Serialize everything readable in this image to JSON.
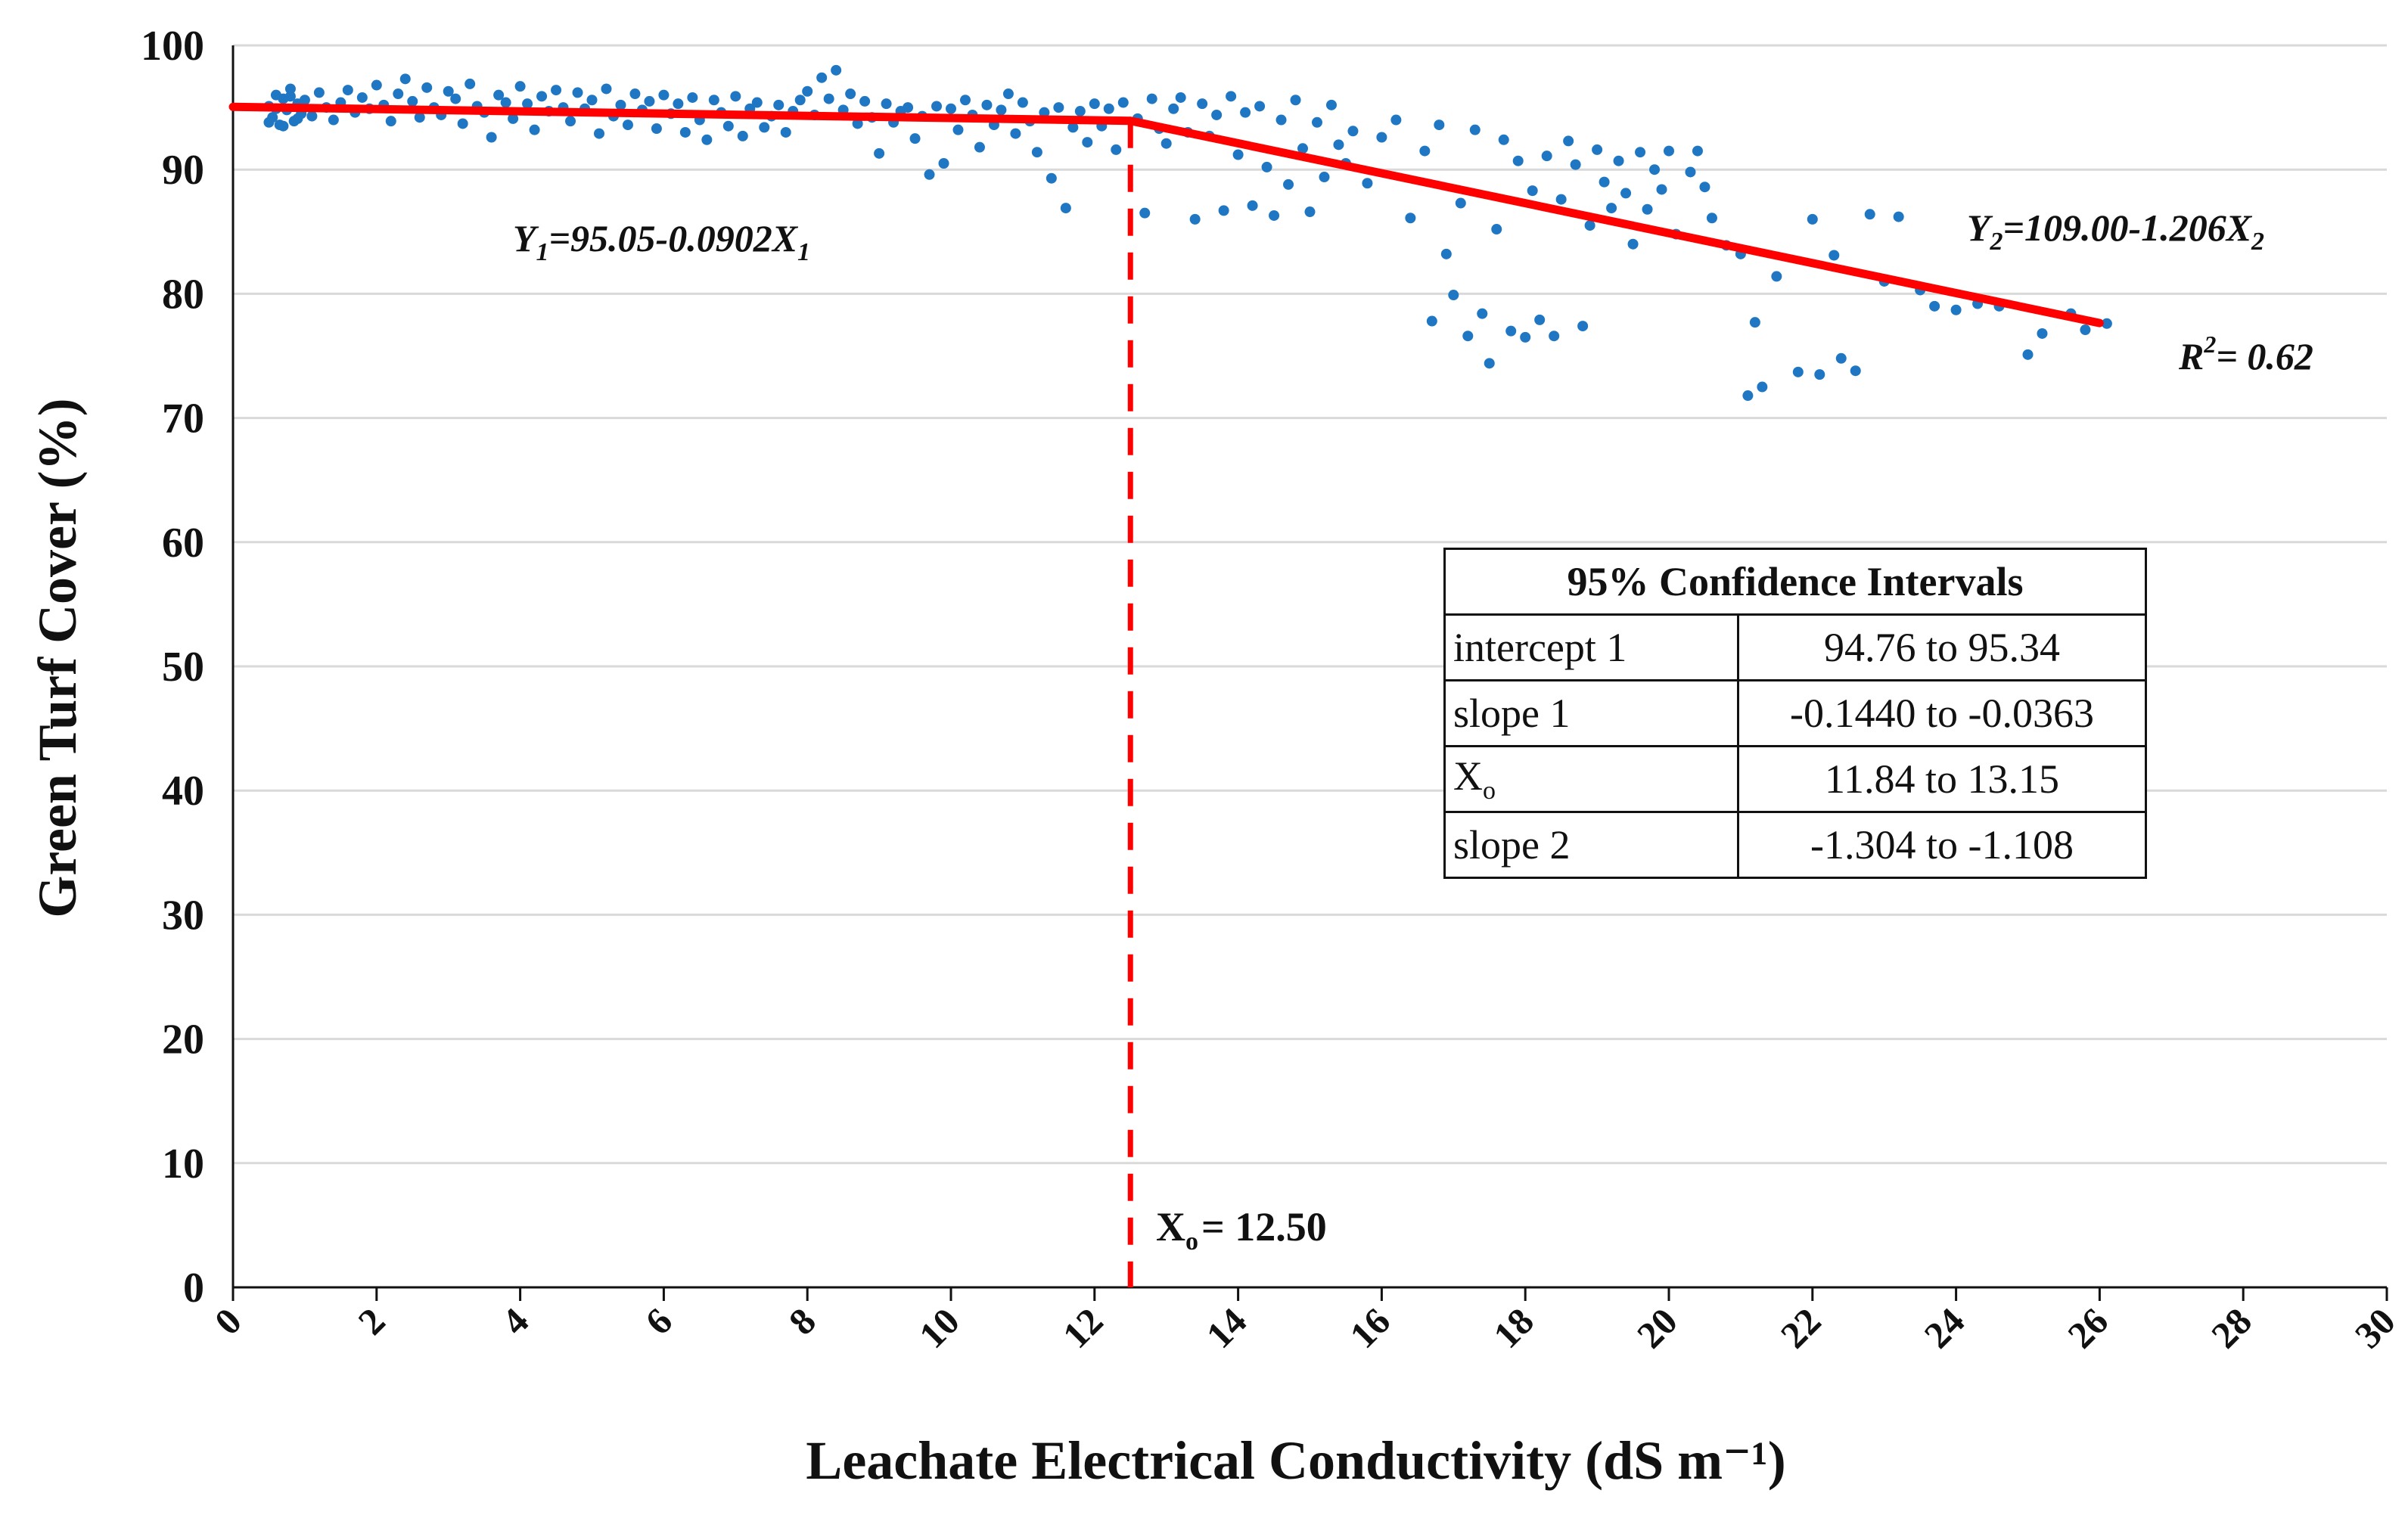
{
  "chart_data": {
    "type": "scatter",
    "xlabel": "Leachate Electrical Conductivity (dS m⁻¹)",
    "ylabel": "Green Turf Cover (%)",
    "xlim": [
      0,
      30
    ],
    "ylim": [
      0,
      100
    ],
    "x_ticks": [
      "0",
      "2",
      "4",
      "6",
      "8",
      "10",
      "12",
      "14",
      "16",
      "18",
      "20",
      "22",
      "24",
      "26",
      "28",
      "30"
    ],
    "y_ticks": [
      "0",
      "10",
      "20",
      "30",
      "40",
      "50",
      "60",
      "70",
      "80",
      "90",
      "100"
    ],
    "grid": "horizontal",
    "point_color": "#1f77c4",
    "fit_color": "#ff0000",
    "segments": [
      {
        "name": "Y1=95.05-0.0902X1",
        "intercept": 95.05,
        "slope": -0.0902,
        "x_start": 0,
        "x_end": 12.5
      },
      {
        "name": "Y2=109.00-1.206X2",
        "intercept": 109.0,
        "slope": -1.206,
        "x_start": 12.5,
        "x_end": 26.0
      }
    ],
    "breakpoint": {
      "label": "X",
      "sub": "o",
      "value_text": "= 12.50",
      "x": 12.5
    },
    "annotations": {
      "eq1": {
        "y": "Y",
        "s1": "1",
        "mid": "=95.05-0.0902X",
        "s2": "1"
      },
      "eq2": {
        "y": "Y",
        "s1": "2",
        "mid": "=109.00-1.206X",
        "s2": "2"
      },
      "r2": {
        "r": "R",
        "sup": "2",
        "rest": "= 0.62"
      }
    },
    "points": [
      [
        0.5,
        95.1
      ],
      [
        0.55,
        94.2
      ],
      [
        0.6,
        96.0
      ],
      [
        0.65,
        93.6
      ],
      [
        0.7,
        95.7
      ],
      [
        0.75,
        94.8
      ],
      [
        0.8,
        96.5
      ],
      [
        0.85,
        93.9
      ],
      [
        0.9,
        95.3
      ],
      [
        0.95,
        94.5
      ],
      [
        0.5,
        93.8
      ],
      [
        0.6,
        94.9
      ],
      [
        0.7,
        93.5
      ],
      [
        0.8,
        95.9
      ],
      [
        0.9,
        94.1
      ],
      [
        1.0,
        95.6
      ],
      [
        1.1,
        94.3
      ],
      [
        1.2,
        96.2
      ],
      [
        1.3,
        95.0
      ],
      [
        1.4,
        94.0
      ],
      [
        1.5,
        95.4
      ],
      [
        1.6,
        96.4
      ],
      [
        1.7,
        94.6
      ],
      [
        1.8,
        95.8
      ],
      [
        1.9,
        94.9
      ],
      [
        2.0,
        96.8
      ],
      [
        2.1,
        95.2
      ],
      [
        2.2,
        93.9
      ],
      [
        2.3,
        96.1
      ],
      [
        2.4,
        97.3
      ],
      [
        2.5,
        95.5
      ],
      [
        2.6,
        94.2
      ],
      [
        2.7,
        96.6
      ],
      [
        2.8,
        95.0
      ],
      [
        2.9,
        94.4
      ],
      [
        3.0,
        96.3
      ],
      [
        3.1,
        95.7
      ],
      [
        3.2,
        93.7
      ],
      [
        3.3,
        96.9
      ],
      [
        3.4,
        95.1
      ],
      [
        3.5,
        94.6
      ],
      [
        3.6,
        92.6
      ],
      [
        3.7,
        96.0
      ],
      [
        3.8,
        95.4
      ],
      [
        3.9,
        94.1
      ],
      [
        4.0,
        96.7
      ],
      [
        4.1,
        95.3
      ],
      [
        4.2,
        93.2
      ],
      [
        4.3,
        95.9
      ],
      [
        4.4,
        94.7
      ],
      [
        4.5,
        96.4
      ],
      [
        4.6,
        95.0
      ],
      [
        4.7,
        93.9
      ],
      [
        4.8,
        96.2
      ],
      [
        4.9,
        94.9
      ],
      [
        5.0,
        95.6
      ],
      [
        5.1,
        92.9
      ],
      [
        5.2,
        96.5
      ],
      [
        5.3,
        94.3
      ],
      [
        5.4,
        95.2
      ],
      [
        5.5,
        93.6
      ],
      [
        5.6,
        96.1
      ],
      [
        5.7,
        94.8
      ],
      [
        5.8,
        95.5
      ],
      [
        5.9,
        93.3
      ],
      [
        6.0,
        96.0
      ],
      [
        6.1,
        94.5
      ],
      [
        6.2,
        95.3
      ],
      [
        6.3,
        93.0
      ],
      [
        6.4,
        95.8
      ],
      [
        6.5,
        94.0
      ],
      [
        6.6,
        92.4
      ],
      [
        6.7,
        95.6
      ],
      [
        6.8,
        94.6
      ],
      [
        6.9,
        93.5
      ],
      [
        7.0,
        95.9
      ],
      [
        7.1,
        92.7
      ],
      [
        7.2,
        94.9
      ],
      [
        7.3,
        95.4
      ],
      [
        7.4,
        93.4
      ],
      [
        7.5,
        94.3
      ],
      [
        7.6,
        95.2
      ],
      [
        7.7,
        93.0
      ],
      [
        7.8,
        94.7
      ],
      [
        7.9,
        95.6
      ],
      [
        8.0,
        96.3
      ],
      [
        8.1,
        94.4
      ],
      [
        8.2,
        97.4
      ],
      [
        8.3,
        95.7
      ],
      [
        8.4,
        98.0
      ],
      [
        8.5,
        94.8
      ],
      [
        8.6,
        96.1
      ],
      [
        8.7,
        93.7
      ],
      [
        8.8,
        95.5
      ],
      [
        8.9,
        94.2
      ],
      [
        9.0,
        91.3
      ],
      [
        9.1,
        95.3
      ],
      [
        9.2,
        93.8
      ],
      [
        9.3,
        94.7
      ],
      [
        9.4,
        95.0
      ],
      [
        9.5,
        92.5
      ],
      [
        9.6,
        94.3
      ],
      [
        9.7,
        89.6
      ],
      [
        9.8,
        95.1
      ],
      [
        9.9,
        90.5
      ],
      [
        10.0,
        94.9
      ],
      [
        10.1,
        93.2
      ],
      [
        10.2,
        95.6
      ],
      [
        10.3,
        94.4
      ],
      [
        10.4,
        91.8
      ],
      [
        10.5,
        95.2
      ],
      [
        10.6,
        93.6
      ],
      [
        10.7,
        94.8
      ],
      [
        10.8,
        96.1
      ],
      [
        10.9,
        92.9
      ],
      [
        11.0,
        95.4
      ],
      [
        11.1,
        93.9
      ],
      [
        11.2,
        91.4
      ],
      [
        11.3,
        94.6
      ],
      [
        11.4,
        89.3
      ],
      [
        11.5,
        95.0
      ],
      [
        11.6,
        86.9
      ],
      [
        11.7,
        93.4
      ],
      [
        11.8,
        94.7
      ],
      [
        11.9,
        92.2
      ],
      [
        12.0,
        95.3
      ],
      [
        12.1,
        93.5
      ],
      [
        12.2,
        94.9
      ],
      [
        12.3,
        91.6
      ],
      [
        12.4,
        95.4
      ],
      [
        12.6,
        94.1
      ],
      [
        12.7,
        86.5
      ],
      [
        12.8,
        95.7
      ],
      [
        12.9,
        93.3
      ],
      [
        13.0,
        92.1
      ],
      [
        13.1,
        94.9
      ],
      [
        13.2,
        95.8
      ],
      [
        13.3,
        93.0
      ],
      [
        13.4,
        86.0
      ],
      [
        13.5,
        95.3
      ],
      [
        13.6,
        92.7
      ],
      [
        13.7,
        94.4
      ],
      [
        13.8,
        86.7
      ],
      [
        13.9,
        95.9
      ],
      [
        14.0,
        91.2
      ],
      [
        14.1,
        94.6
      ],
      [
        14.2,
        87.1
      ],
      [
        14.3,
        95.1
      ],
      [
        14.4,
        90.2
      ],
      [
        14.5,
        86.3
      ],
      [
        14.6,
        94.0
      ],
      [
        14.7,
        88.8
      ],
      [
        14.8,
        95.6
      ],
      [
        14.9,
        91.7
      ],
      [
        15.0,
        86.6
      ],
      [
        15.1,
        93.8
      ],
      [
        15.2,
        89.4
      ],
      [
        15.3,
        95.2
      ],
      [
        15.4,
        92.0
      ],
      [
        15.5,
        90.5
      ],
      [
        15.6,
        93.1
      ],
      [
        15.8,
        88.9
      ],
      [
        16.0,
        92.6
      ],
      [
        16.2,
        94.0
      ],
      [
        16.4,
        86.1
      ],
      [
        16.6,
        91.5
      ],
      [
        16.7,
        77.8
      ],
      [
        16.8,
        93.6
      ],
      [
        16.9,
        83.2
      ],
      [
        17.0,
        79.9
      ],
      [
        17.1,
        87.3
      ],
      [
        17.2,
        76.6
      ],
      [
        17.3,
        93.2
      ],
      [
        17.4,
        78.4
      ],
      [
        17.5,
        74.4
      ],
      [
        17.6,
        85.2
      ],
      [
        17.7,
        92.4
      ],
      [
        17.8,
        77.0
      ],
      [
        17.9,
        90.7
      ],
      [
        18.0,
        76.5
      ],
      [
        18.1,
        88.3
      ],
      [
        18.2,
        77.9
      ],
      [
        18.3,
        91.1
      ],
      [
        18.4,
        76.6
      ],
      [
        18.5,
        87.6
      ],
      [
        18.6,
        92.3
      ],
      [
        18.7,
        90.4
      ],
      [
        18.8,
        77.4
      ],
      [
        18.9,
        85.5
      ],
      [
        19.0,
        91.6
      ],
      [
        19.1,
        89.0
      ],
      [
        19.2,
        86.9
      ],
      [
        19.3,
        90.7
      ],
      [
        19.4,
        88.1
      ],
      [
        19.5,
        84.0
      ],
      [
        19.6,
        91.4
      ],
      [
        19.7,
        86.8
      ],
      [
        19.8,
        90.0
      ],
      [
        19.9,
        88.4
      ],
      [
        20.0,
        91.5
      ],
      [
        20.1,
        84.8
      ],
      [
        20.3,
        89.8
      ],
      [
        20.4,
        91.5
      ],
      [
        20.5,
        88.6
      ],
      [
        20.6,
        86.1
      ],
      [
        20.8,
        83.9
      ],
      [
        21.0,
        83.2
      ],
      [
        21.1,
        71.8
      ],
      [
        21.2,
        77.7
      ],
      [
        21.3,
        72.5
      ],
      [
        21.5,
        81.4
      ],
      [
        21.8,
        73.7
      ],
      [
        22.0,
        86.0
      ],
      [
        22.1,
        73.5
      ],
      [
        22.3,
        83.1
      ],
      [
        22.4,
        74.8
      ],
      [
        22.6,
        73.8
      ],
      [
        22.8,
        86.4
      ],
      [
        23.0,
        81.0
      ],
      [
        23.2,
        86.2
      ],
      [
        23.5,
        80.3
      ],
      [
        23.7,
        79.0
      ],
      [
        24.0,
        78.7
      ],
      [
        24.3,
        79.2
      ],
      [
        24.6,
        79.0
      ],
      [
        25.0,
        75.1
      ],
      [
        25.2,
        76.8
      ],
      [
        25.6,
        78.4
      ],
      [
        25.8,
        77.1
      ],
      [
        26.1,
        77.6
      ]
    ]
  },
  "ci_table": {
    "title": "95% Confidence Intervals",
    "rows": [
      {
        "label": "intercept 1",
        "value": "94.76 to 95.34"
      },
      {
        "label": "slope 1",
        "value": "-0.1440 to -0.0363"
      },
      {
        "label_main": "X",
        "label_sub": "o",
        "value": "11.84 to 13.15"
      },
      {
        "label": "slope 2",
        "value": "-1.304 to -1.108"
      }
    ]
  }
}
